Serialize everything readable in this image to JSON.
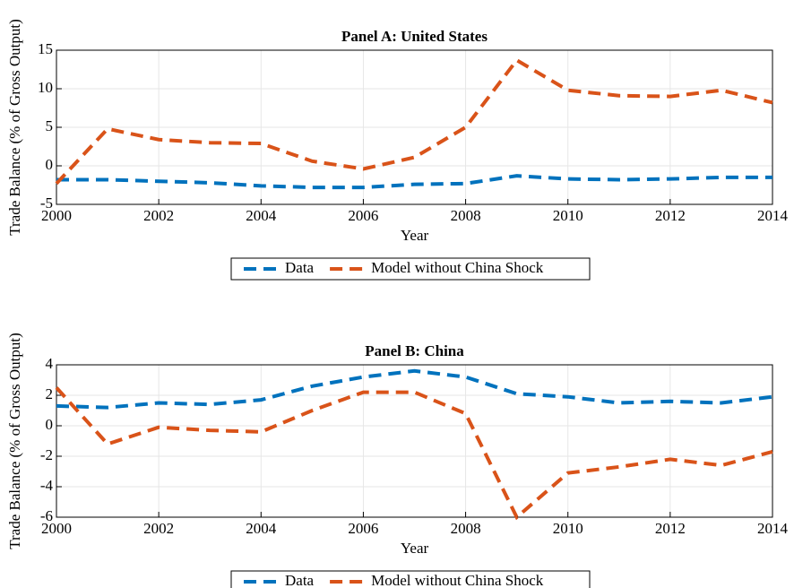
{
  "chart_data": [
    {
      "type": "line",
      "title": "Panel A: United States",
      "x_label": "Year",
      "y_label": "Trade Balance (% of Gross Output)",
      "x": [
        2000,
        2001,
        2002,
        2003,
        2004,
        2005,
        2006,
        2007,
        2008,
        2009,
        2010,
        2011,
        2012,
        2013,
        2014
      ],
      "xlim": [
        2000,
        2014
      ],
      "xticks": [
        2000,
        2002,
        2004,
        2006,
        2008,
        2010,
        2012,
        2014
      ],
      "ylim": [
        -5,
        15
      ],
      "yticks": [
        -5,
        0,
        5,
        10,
        15
      ],
      "grid": true,
      "legend": "bottom",
      "series": [
        {
          "name": "Data",
          "color": "#0072bd",
          "values": [
            -1.8,
            -1.8,
            -2.0,
            -2.2,
            -2.6,
            -2.8,
            -2.8,
            -2.4,
            -2.3,
            -1.3,
            -1.7,
            -1.8,
            -1.7,
            -1.5,
            -1.5
          ]
        },
        {
          "name": "Model without China Shock",
          "color": "#d95319",
          "values": [
            -2.3,
            4.8,
            3.4,
            3.0,
            2.9,
            0.6,
            -0.4,
            1.1,
            5.0,
            13.7,
            9.8,
            9.1,
            9.0,
            9.8,
            8.2
          ]
        }
      ]
    },
    {
      "type": "line",
      "title": "Panel B: China",
      "x_label": "Year",
      "y_label": "Trade Balance (% of Gross Output)",
      "x": [
        2000,
        2001,
        2002,
        2003,
        2004,
        2005,
        2006,
        2007,
        2008,
        2009,
        2010,
        2011,
        2012,
        2013,
        2014
      ],
      "xlim": [
        2000,
        2014
      ],
      "xticks": [
        2000,
        2002,
        2004,
        2006,
        2008,
        2010,
        2012,
        2014
      ],
      "ylim": [
        -6,
        4
      ],
      "yticks": [
        -6,
        -4,
        -2,
        0,
        2,
        4
      ],
      "grid": true,
      "legend": "bottom",
      "series": [
        {
          "name": "Data",
          "color": "#0072bd",
          "values": [
            1.3,
            1.2,
            1.5,
            1.4,
            1.7,
            2.6,
            3.2,
            3.6,
            3.2,
            2.1,
            1.9,
            1.5,
            1.6,
            1.5,
            1.9
          ]
        },
        {
          "name": "Model without China Shock",
          "color": "#d95319",
          "values": [
            2.5,
            -1.2,
            -0.1,
            -0.3,
            -0.4,
            1.0,
            2.2,
            2.2,
            0.8,
            -6.0,
            -3.1,
            -2.7,
            -2.2,
            -2.6,
            -1.7
          ]
        }
      ]
    }
  ]
}
